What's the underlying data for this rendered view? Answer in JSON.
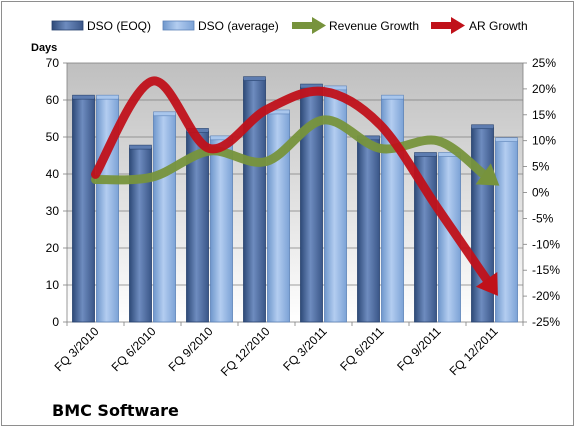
{
  "chart_data": {
    "type": "bar",
    "title": "",
    "company_label": "BMC Software",
    "categories": [
      "FQ 3/2010",
      "FQ 6/2010",
      "FQ 9/2010",
      "FQ 12/2010",
      "FQ 3/2011",
      "FQ 6/2011",
      "FQ 9/2011",
      "FQ 12/2011"
    ],
    "ylabel": "Days",
    "ylim": [
      0,
      70
    ],
    "y_ticks": [
      0,
      10,
      20,
      30,
      40,
      50,
      60,
      70
    ],
    "y2lim": [
      -25,
      25
    ],
    "y2_ticks": [
      "-25%",
      "-20%",
      "-15%",
      "-10%",
      "-5%",
      "0%",
      "5%",
      "10%",
      "15%",
      "20%",
      "25%"
    ],
    "grid": true,
    "legend_position": "top",
    "series": [
      {
        "name": "DSO (EOQ)",
        "type": "bar",
        "axis": "left",
        "color": "#4f6fa0",
        "values": [
          60.5,
          47,
          51.5,
          65.5,
          63.5,
          49.5,
          45,
          52.5
        ]
      },
      {
        "name": "DSO (average)",
        "type": "bar",
        "axis": "left",
        "color": "#8fb4e3",
        "values": [
          60.5,
          56,
          49.5,
          56.5,
          63,
          60.5,
          45,
          49
        ]
      },
      {
        "name": "Revenue Growth",
        "type": "line",
        "axis": "right",
        "unit": "%",
        "color": "#77933c",
        "values": [
          2.5,
          3,
          8,
          6,
          14,
          8.5,
          10,
          2
        ]
      },
      {
        "name": "AR Growth",
        "type": "line",
        "axis": "right",
        "unit": "%",
        "color": "#c0111a",
        "values": [
          3.5,
          21.5,
          8.5,
          16,
          19.5,
          13,
          -3,
          -19
        ]
      }
    ]
  }
}
